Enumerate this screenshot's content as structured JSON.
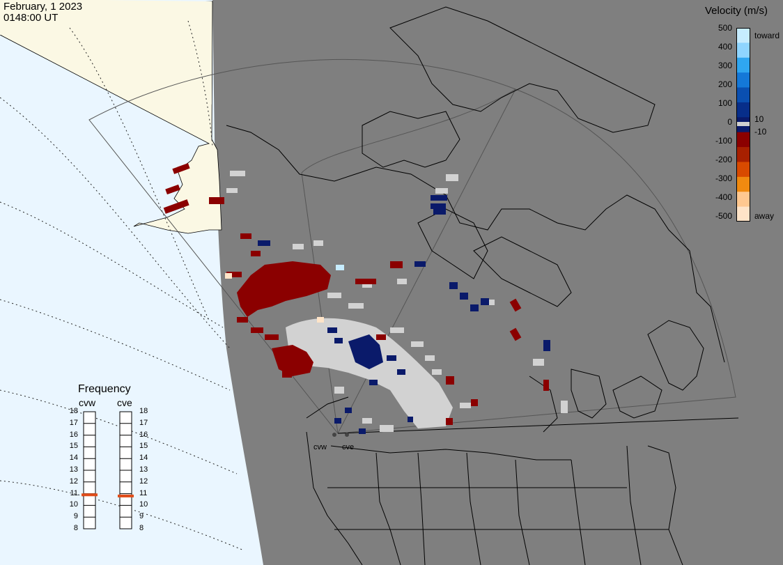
{
  "header": {
    "date": "February, 1 2023",
    "time": "0148:00 UT"
  },
  "velocity_legend": {
    "title": "Velocity (m/s)",
    "ticks": [
      "500",
      "400",
      "300",
      "200",
      "100",
      "0",
      "-100",
      "-200",
      "-300",
      "-400",
      "-500"
    ],
    "side_labels": {
      "toward": "toward",
      "plus10": "10",
      "minus10": "-10",
      "away": "away"
    },
    "colors": [
      "#c6ecff",
      "#8fd5ff",
      "#2fa6f0",
      "#1478d8",
      "#0a4fb0",
      "#072e8a",
      "#0a1a6a",
      "#8b0000",
      "#a82000",
      "#d84a00",
      "#f08a10",
      "#ffc890",
      "#ffe4c8"
    ]
  },
  "frequency_panel": {
    "title": "Frequency",
    "radars": [
      {
        "name": "cvw",
        "value_mhz": 10.9
      },
      {
        "name": "cve",
        "value_mhz": 10.8
      }
    ],
    "ticks": [
      "18",
      "17",
      "16",
      "15",
      "14",
      "13",
      "12",
      "11",
      "10",
      "9",
      "8"
    ]
  },
  "sites": [
    "cvw",
    "cve"
  ],
  "colors": {
    "map_fill": "#7f7f7f",
    "ocean": "#eaf6ff",
    "land_daylight": "#fbf8e4",
    "ground_scatter": "#d2d2d2",
    "indicator": "#e04d1a"
  }
}
